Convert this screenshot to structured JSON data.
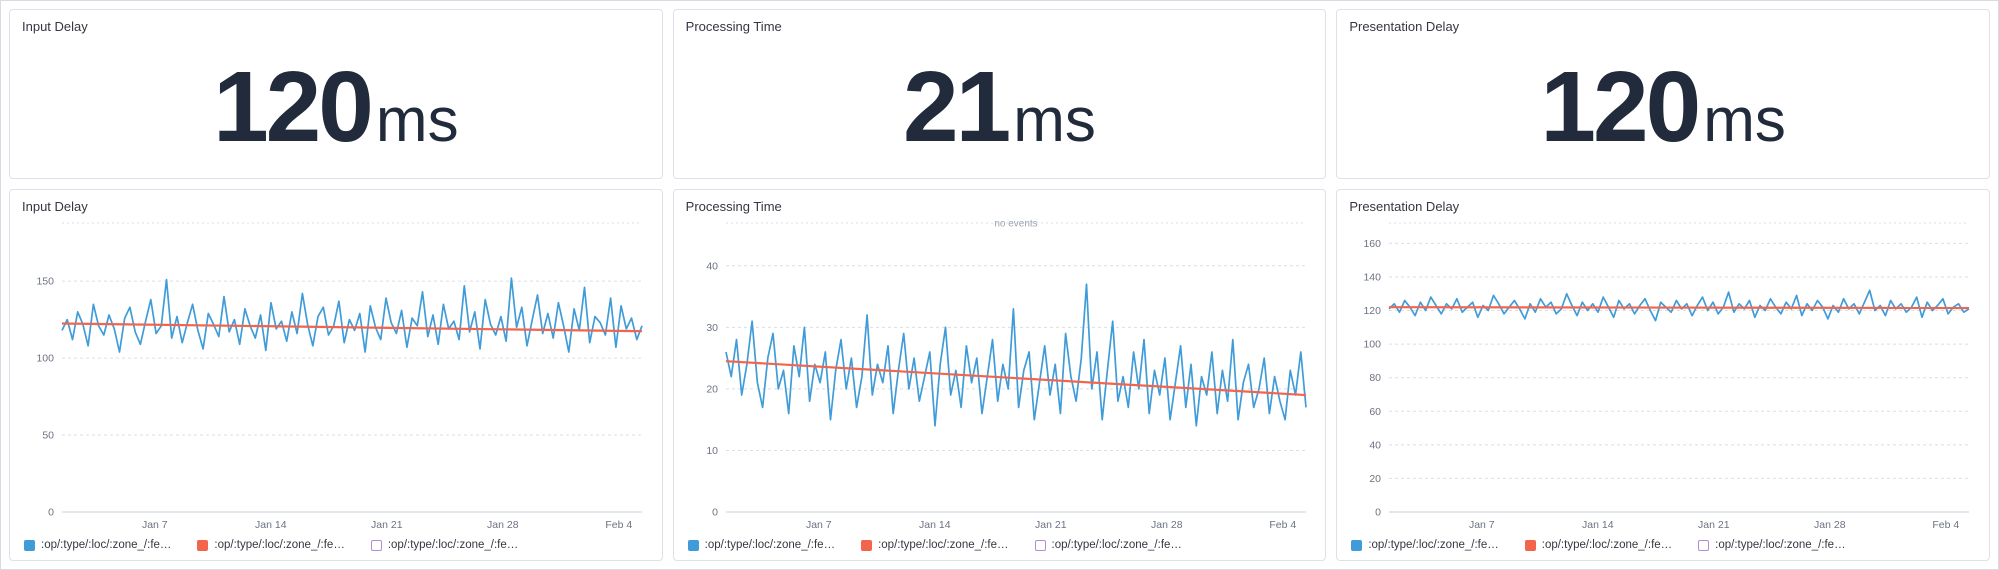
{
  "colors": {
    "series_blue": "#3f9cd9",
    "trend_orange": "#f2654c",
    "stat_text": "#212b3b",
    "grid": "#d9dee7",
    "axis": "#c9cfda",
    "axis_text": "#6b7280",
    "muted": "#9aa5b1",
    "legend_outline": "#b18cd9"
  },
  "chart_data": [
    {
      "type": "stat",
      "title": "Input Delay",
      "value": "120",
      "unit": "ms"
    },
    {
      "type": "stat",
      "title": "Processing Time",
      "value": "21",
      "unit": "ms"
    },
    {
      "type": "stat",
      "title": "Presentation Delay",
      "value": "120",
      "unit": "ms"
    },
    {
      "type": "line",
      "title": "Input Delay",
      "x_tick_labels": [
        "Jan 7",
        "Jan 14",
        "Jan 21",
        "Jan 28",
        "Feb 4"
      ],
      "x_tick_pos": [
        0.16,
        0.36,
        0.56,
        0.76,
        0.96
      ],
      "y_ticks": [
        0,
        50,
        100,
        150
      ],
      "ylim": [
        0,
        180
      ],
      "annotation": "",
      "values": [
        118,
        125,
        112,
        130,
        122,
        108,
        135,
        121,
        115,
        128,
        119,
        104,
        126,
        133,
        117,
        109,
        124,
        138,
        116,
        121,
        151,
        113,
        127,
        110,
        123,
        135,
        118,
        106,
        129,
        122,
        114,
        140,
        117,
        125,
        109,
        132,
        121,
        113,
        128,
        105,
        136,
        119,
        124,
        111,
        130,
        116,
        142,
        122,
        108,
        127,
        133,
        115,
        121,
        137,
        110,
        125,
        118,
        129,
        104,
        134,
        120,
        112,
        139,
        123,
        116,
        131,
        107,
        126,
        121,
        143,
        114,
        128,
        109,
        135,
        119,
        124,
        112,
        147,
        117,
        130,
        106,
        138,
        122,
        115,
        127,
        111,
        152,
        120,
        133,
        108,
        125,
        141,
        116,
        129,
        113,
        136,
        121,
        104,
        132,
        118,
        146,
        110,
        127,
        123,
        115,
        139,
        107,
        134,
        119,
        126,
        112,
        121
      ],
      "trend": {
        "start": 122.5,
        "end": 117.5
      },
      "legend": [
        {
          "label": ":op/:type/:loc/:zone_/:fe…",
          "swatch": "series_blue"
        },
        {
          "label": ":op/:type/:loc/:zone_/:fe…",
          "swatch": "trend_orange"
        },
        {
          "label": ":op/:type/:loc/:zone_/:fe…",
          "swatch": "outline"
        }
      ]
    },
    {
      "type": "line",
      "title": "Processing Time",
      "x_tick_labels": [
        "Jan 7",
        "Jan 14",
        "Jan 21",
        "Jan 28",
        "Feb 4"
      ],
      "x_tick_pos": [
        0.16,
        0.36,
        0.56,
        0.76,
        0.96
      ],
      "y_ticks": [
        0,
        10,
        20,
        30,
        40
      ],
      "ylim": [
        0,
        45
      ],
      "annotation": "no events",
      "values": [
        26,
        22,
        28,
        19,
        24,
        31,
        21,
        17,
        25,
        29,
        20,
        23,
        16,
        27,
        22,
        30,
        18,
        24,
        21,
        26,
        15,
        23,
        28,
        20,
        25,
        17,
        22,
        32,
        19,
        24,
        21,
        27,
        16,
        23,
        29,
        20,
        25,
        18,
        22,
        26,
        14,
        24,
        30,
        19,
        23,
        17,
        27,
        21,
        25,
        16,
        22,
        28,
        18,
        24,
        20,
        33,
        17,
        23,
        26,
        15,
        21,
        27,
        19,
        24,
        16,
        29,
        22,
        18,
        25,
        37,
        20,
        26,
        15,
        23,
        31,
        18,
        22,
        17,
        26,
        20,
        28,
        16,
        23,
        19,
        25,
        15,
        21,
        27,
        17,
        24,
        14,
        22,
        19,
        26,
        16,
        23,
        18,
        28,
        15,
        21,
        24,
        17,
        20,
        25,
        16,
        22,
        18,
        15,
        23,
        19,
        26,
        17
      ],
      "trend": {
        "start": 24.5,
        "end": 19.0
      },
      "legend": [
        {
          "label": ":op/:type/:loc/:zone_/:fe…",
          "swatch": "series_blue"
        },
        {
          "label": ":op/:type/:loc/:zone_/:fe…",
          "swatch": "trend_orange"
        },
        {
          "label": ":op/:type/:loc/:zone_/:fe…",
          "swatch": "outline"
        }
      ]
    },
    {
      "type": "line",
      "title": "Presentation Delay",
      "x_tick_labels": [
        "Jan 7",
        "Jan 14",
        "Jan 21",
        "Jan 28",
        "Feb 4"
      ],
      "x_tick_pos": [
        0.16,
        0.36,
        0.56,
        0.76,
        0.96
      ],
      "y_ticks": [
        0,
        20,
        40,
        60,
        80,
        100,
        120,
        140,
        160
      ],
      "ylim": [
        0,
        165
      ],
      "annotation": "",
      "values": [
        121,
        124,
        119,
        126,
        122,
        117,
        125,
        120,
        128,
        123,
        118,
        124,
        121,
        127,
        119,
        122,
        125,
        116,
        123,
        120,
        129,
        124,
        118,
        122,
        126,
        121,
        115,
        124,
        119,
        127,
        122,
        125,
        118,
        121,
        130,
        123,
        117,
        125,
        120,
        124,
        119,
        128,
        122,
        116,
        126,
        121,
        124,
        118,
        123,
        127,
        120,
        114,
        125,
        122,
        119,
        126,
        121,
        124,
        117,
        123,
        128,
        120,
        125,
        118,
        122,
        131,
        119,
        124,
        121,
        126,
        116,
        123,
        120,
        127,
        122,
        118,
        125,
        121,
        129,
        117,
        124,
        120,
        126,
        122,
        115,
        123,
        119,
        127,
        121,
        124,
        118,
        125,
        132,
        120,
        123,
        117,
        126,
        121,
        124,
        119,
        122,
        128,
        116,
        125,
        120,
        123,
        127,
        118,
        122,
        124,
        119,
        121
      ],
      "trend": {
        "start": 122.0,
        "end": 121.5
      },
      "legend": [
        {
          "label": ":op/:type/:loc/:zone_/:fe…",
          "swatch": "series_blue"
        },
        {
          "label": ":op/:type/:loc/:zone_/:fe…",
          "swatch": "trend_orange"
        },
        {
          "label": ":op/:type/:loc/:zone_/:fe…",
          "swatch": "outline"
        }
      ]
    }
  ]
}
